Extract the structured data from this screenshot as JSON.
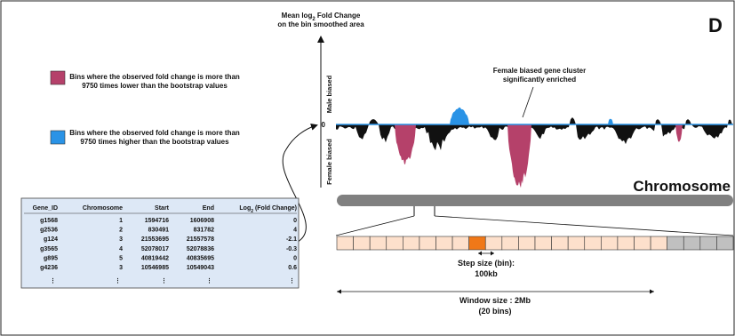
{
  "panel_letter": "D",
  "legend": {
    "items": [
      {
        "text_line1": "Bins where the observed fold change is more than",
        "text_line2": "9750 times lower than the bootstrap values",
        "color": "#b5416a"
      },
      {
        "text_line1": "Bins where the observed fold change is more than",
        "text_line2": "9750 times higher than the bootstrap values",
        "color": "#2a93e6"
      }
    ]
  },
  "track": {
    "ylabel_line1": "Mean log",
    "ylabel_sub": "2",
    "ylabel_line1_rest": " Fold Change",
    "ylabel_line2": "on the bin smoothed area",
    "male_label": "Male biased",
    "female_label": "Female biased",
    "zero_label": "0",
    "annotation_line1": "Female biased gene cluster",
    "annotation_line2": "significantly enriched",
    "chromosome_label": "Chromosome",
    "colors": {
      "neutral": "#111111",
      "female": "#b5416a",
      "male": "#2a93e6",
      "chromosome": "#808080"
    }
  },
  "table": {
    "headers": [
      "Gene_ID",
      "Chromosome",
      "Start",
      "End"
    ],
    "header_log_pre": "Log",
    "header_log_sub": "2",
    "header_log_post": " (Fold Change)",
    "rows": [
      [
        "g1568",
        "1",
        "1594716",
        "1606908",
        "0"
      ],
      [
        "g2536",
        "2",
        "830491",
        "831782",
        "4"
      ],
      [
        "g124",
        "3",
        "21553695",
        "21557578",
        "-2.1"
      ],
      [
        "g3565",
        "4",
        "52078017",
        "52078836",
        "-0.3"
      ],
      [
        "g895",
        "5",
        "40819442",
        "40835695",
        "0"
      ],
      [
        "g4236",
        "3",
        "10546985",
        "10549043",
        "0.6"
      ]
    ],
    "ellipsis": "⋮",
    "background": "#dde8f6"
  },
  "bins": {
    "count": 24,
    "highlight_index": 8,
    "window_bins": 20,
    "colors": {
      "window": "#fde0cc",
      "highlight": "#f07818",
      "outside": "#c0c0c0"
    }
  },
  "step_label_line1": "Step size (bin):",
  "step_label_line2": "100kb",
  "window_label_line1": "Window size : 2Mb",
  "window_label_line2": "(20 bins)"
}
